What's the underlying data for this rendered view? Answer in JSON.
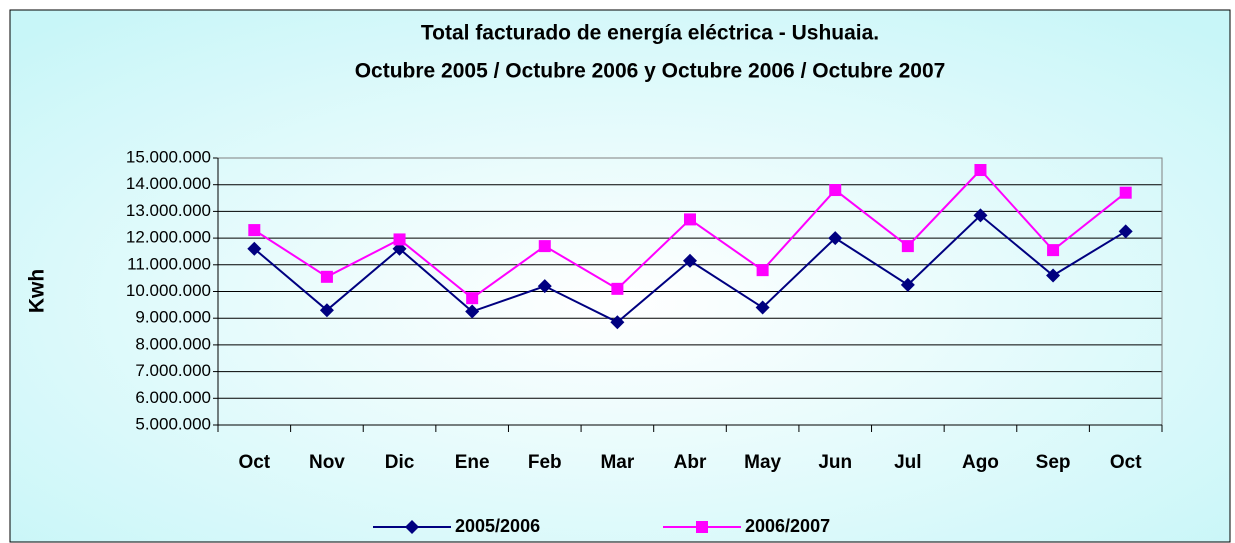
{
  "chart_data": {
    "type": "line",
    "title": "Total facturado de energía eléctrica - Ushuaia.",
    "subtitle": "Octubre 2005 / Octubre 2006 y Octubre 2006 / Octubre 2007",
    "y_label": "Kwh",
    "categories": [
      "Oct",
      "Nov",
      "Dic",
      "Ene",
      "Feb",
      "Mar",
      "Abr",
      "May",
      "Jun",
      "Jul",
      "Ago",
      "Sep",
      "Oct"
    ],
    "series": [
      {
        "name": "2005/2006",
        "color": "#000080",
        "marker": "diamond",
        "values": [
          11600000,
          9300000,
          11600000,
          9250000,
          10200000,
          8850000,
          11150000,
          9400000,
          12000000,
          10250000,
          12850000,
          10600000,
          12250000
        ]
      },
      {
        "name": "2006/2007",
        "color": "#ff00ff",
        "marker": "square",
        "values": [
          12300000,
          10550000,
          11950000,
          9750000,
          11700000,
          10100000,
          12700000,
          10800000,
          13800000,
          11700000,
          14550000,
          11550000,
          13700000
        ]
      }
    ],
    "ylim": [
      5000000,
      15000000
    ],
    "yticks": [
      {
        "value": 5000000,
        "label": "5.000.000"
      },
      {
        "value": 6000000,
        "label": "6.000.000"
      },
      {
        "value": 7000000,
        "label": "7.000.000"
      },
      {
        "value": 8000000,
        "label": "8.000.000"
      },
      {
        "value": 9000000,
        "label": "9.000.000"
      },
      {
        "value": 10000000,
        "label": "10.000.000"
      },
      {
        "value": 11000000,
        "label": "11.000.000"
      },
      {
        "value": 12000000,
        "label": "12.000.000"
      },
      {
        "value": 13000000,
        "label": "13.000.000"
      },
      {
        "value": 14000000,
        "label": "14.000.000"
      },
      {
        "value": 15000000,
        "label": "15.000.000"
      }
    ],
    "grid": true,
    "legend": "bottom"
  }
}
